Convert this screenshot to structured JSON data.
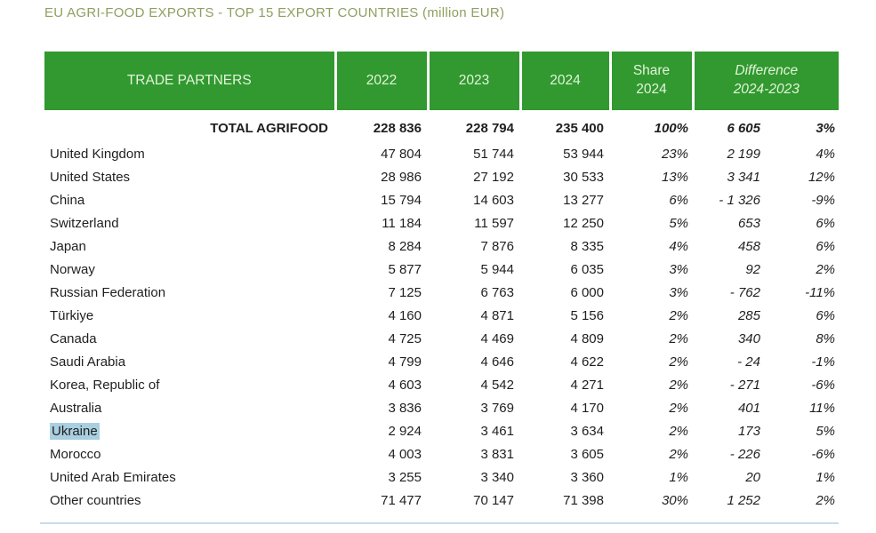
{
  "title": "EU AGRI-FOOD EXPORTS - TOP 15 EXPORT COUNTRIES (million EUR)",
  "colors": {
    "header_green": "#31992f",
    "header_text": "#e3f4da",
    "title_olive": "#8f9f60",
    "highlight_blue": "#a9cfe1",
    "body_text": "#1f1f1f"
  },
  "table": {
    "headers": {
      "partners": "TRADE PARTNERS",
      "y2022": "2022",
      "y2023": "2023",
      "y2024": "2024",
      "share_line1": "Share",
      "share_line2": "2024",
      "diff_line1": "Difference",
      "diff_line2": "2024-2023"
    },
    "total": {
      "name": "TOTAL AGRIFOOD",
      "y2022": "228 836",
      "y2023": "228 794",
      "y2024": "235 400",
      "share": "100%",
      "diff": "6 605",
      "diff_pct": "3%"
    },
    "rows": [
      {
        "name": "United Kingdom",
        "y2022": "47 804",
        "y2023": "51 744",
        "y2024": "53 944",
        "share": "23%",
        "diff": "2 199",
        "diff_pct": "4%"
      },
      {
        "name": "United States",
        "y2022": "28 986",
        "y2023": "27 192",
        "y2024": "30 533",
        "share": "13%",
        "diff": "3 341",
        "diff_pct": "12%"
      },
      {
        "name": "China",
        "y2022": "15 794",
        "y2023": "14 603",
        "y2024": "13 277",
        "share": "6%",
        "diff": "- 1 326",
        "diff_pct": "-9%"
      },
      {
        "name": "Switzerland",
        "y2022": "11 184",
        "y2023": "11 597",
        "y2024": "12 250",
        "share": "5%",
        "diff": "653",
        "diff_pct": "6%"
      },
      {
        "name": "Japan",
        "y2022": "8 284",
        "y2023": "7 876",
        "y2024": "8 335",
        "share": "4%",
        "diff": "458",
        "diff_pct": "6%"
      },
      {
        "name": "Norway",
        "y2022": "5 877",
        "y2023": "5 944",
        "y2024": "6 035",
        "share": "3%",
        "diff": "92",
        "diff_pct": "2%"
      },
      {
        "name": "Russian Federation",
        "y2022": "7 125",
        "y2023": "6 763",
        "y2024": "6 000",
        "share": "3%",
        "diff": "-  762",
        "diff_pct": "-11%"
      },
      {
        "name": "Türkiye",
        "y2022": "4 160",
        "y2023": "4 871",
        "y2024": "5 156",
        "share": "2%",
        "diff": "285",
        "diff_pct": "6%"
      },
      {
        "name": "Canada",
        "y2022": "4 725",
        "y2023": "4 469",
        "y2024": "4 809",
        "share": "2%",
        "diff": "340",
        "diff_pct": "8%"
      },
      {
        "name": "Saudi Arabia",
        "y2022": "4 799",
        "y2023": "4 646",
        "y2024": "4 622",
        "share": "2%",
        "diff": "-  24",
        "diff_pct": "-1%"
      },
      {
        "name": "Korea, Republic of",
        "y2022": "4 603",
        "y2023": "4 542",
        "y2024": "4 271",
        "share": "2%",
        "diff": "-  271",
        "diff_pct": "-6%"
      },
      {
        "name": "Australia",
        "y2022": "3 836",
        "y2023": "3 769",
        "y2024": "4 170",
        "share": "2%",
        "diff": "401",
        "diff_pct": "11%"
      },
      {
        "name": "Ukraine",
        "y2022": "2 924",
        "y2023": "3 461",
        "y2024": "3 634",
        "share": "2%",
        "diff": "173",
        "diff_pct": "5%",
        "highlighted": true
      },
      {
        "name": "Morocco",
        "y2022": "4 003",
        "y2023": "3 831",
        "y2024": "3 605",
        "share": "2%",
        "diff": "-  226",
        "diff_pct": "-6%"
      },
      {
        "name": "United Arab Emirates",
        "y2022": "3 255",
        "y2023": "3 340",
        "y2024": "3 360",
        "share": "1%",
        "diff": "20",
        "diff_pct": "1%"
      },
      {
        "name": "Other countries",
        "y2022": "71 477",
        "y2023": "70 147",
        "y2024": "71 398",
        "share": "30%",
        "diff": "1 252",
        "diff_pct": "2%"
      }
    ]
  }
}
